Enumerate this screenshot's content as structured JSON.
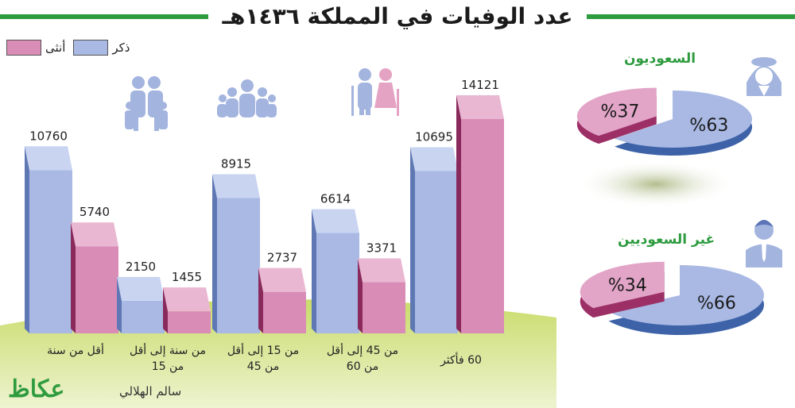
{
  "title": "عدد الوفيات في المملكة ١٤٣٦هـ",
  "legend": {
    "male": "ذكر",
    "female": "أنثى"
  },
  "colors": {
    "male": "#a9b9e4",
    "female": "#d98cb6",
    "accent": "#2e9b3f"
  },
  "chart_data": [
    {
      "type": "bar",
      "categories": [
        "أقل من سنة",
        "من سنة إلى أقل من 15",
        "من 15 إلى أقل من 45",
        "من 45 إلى أقل من 60",
        "60 فأكثر"
      ],
      "category_lines": [
        [
          "أقل من سنة"
        ],
        [
          "من سنة إلى أقل",
          "من 15"
        ],
        [
          "من 15 إلى أقل",
          "من 45"
        ],
        [
          "من 45 إلى أقل",
          "من 60"
        ],
        [
          "60  فأكثر"
        ]
      ],
      "series": [
        {
          "name": "ذكر",
          "values": [
            10760,
            2150,
            8915,
            6614,
            10695
          ]
        },
        {
          "name": "أنثى",
          "values": [
            5740,
            1455,
            2737,
            3371,
            14121
          ]
        }
      ],
      "ylim": [
        0,
        14121
      ]
    },
    {
      "type": "pie",
      "title": "السعوديون",
      "labels": [
        "ذكر",
        "أنثى"
      ],
      "values": [
        63,
        37
      ],
      "value_labels": [
        "%63",
        "%37"
      ]
    },
    {
      "type": "pie",
      "title": "غير السعوديين",
      "labels": [
        "ذكر",
        "أنثى"
      ],
      "values": [
        66,
        34
      ],
      "value_labels": [
        "%66",
        "%34"
      ]
    }
  ],
  "icons": [
    "family-icon",
    "group-icon",
    "elderly-couple-icon",
    "saudi-man-icon",
    "suit-man-icon"
  ],
  "credit": "سالم الهلالي",
  "logo": "عكاظ"
}
